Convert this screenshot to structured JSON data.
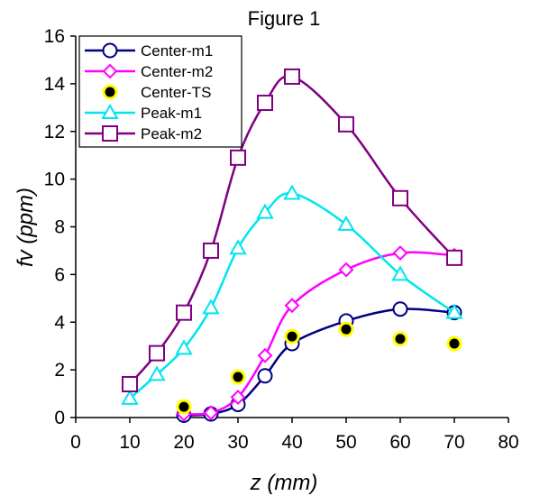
{
  "chart_data": {
    "type": "line",
    "title": "Figure 1",
    "xlabel": "z (mm)",
    "ylabel": "fv (ppm)",
    "xlim": [
      0,
      80
    ],
    "ylim": [
      0,
      16
    ],
    "x_ticks": [
      0,
      10,
      20,
      30,
      40,
      50,
      60,
      70,
      80
    ],
    "y_ticks": [
      0,
      2,
      4,
      6,
      8,
      10,
      12,
      14,
      16
    ],
    "grid": false,
    "legend_position": "top-left",
    "series": [
      {
        "name": "Center-m1",
        "color": "#000080",
        "marker": "circle",
        "line": true,
        "points": [
          [
            20,
            0.1
          ],
          [
            25,
            0.15
          ],
          [
            30,
            0.55
          ],
          [
            35,
            1.75
          ],
          [
            40,
            3.1
          ],
          [
            50,
            4.05
          ],
          [
            60,
            4.55
          ],
          [
            70,
            4.4
          ]
        ]
      },
      {
        "name": "Center-m2",
        "color": "#ff00ff",
        "marker": "diamond",
        "line": true,
        "points": [
          [
            20,
            0.15
          ],
          [
            25,
            0.2
          ],
          [
            30,
            0.85
          ],
          [
            35,
            2.6
          ],
          [
            40,
            4.7
          ],
          [
            50,
            6.2
          ],
          [
            60,
            6.9
          ],
          [
            70,
            6.8
          ]
        ]
      },
      {
        "name": "Center-TS",
        "color": "#000000",
        "fill": "#ffff00",
        "marker": "dot",
        "line": false,
        "points": [
          [
            20,
            0.45
          ],
          [
            30,
            1.7
          ],
          [
            40,
            3.4
          ],
          [
            50,
            3.7
          ],
          [
            60,
            3.3
          ],
          [
            70,
            3.1
          ]
        ]
      },
      {
        "name": "Peak-m1",
        "color": "#00e5ee",
        "marker": "triangle",
        "line": true,
        "points": [
          [
            10,
            0.8
          ],
          [
            15,
            1.8
          ],
          [
            20,
            2.9
          ],
          [
            25,
            4.6
          ],
          [
            30,
            7.1
          ],
          [
            35,
            8.6
          ],
          [
            40,
            9.4
          ],
          [
            50,
            8.1
          ],
          [
            60,
            6.0
          ],
          [
            70,
            4.4
          ]
        ]
      },
      {
        "name": "Peak-m2",
        "color": "#800080",
        "marker": "square",
        "line": true,
        "points": [
          [
            10,
            1.4
          ],
          [
            15,
            2.7
          ],
          [
            20,
            4.4
          ],
          [
            25,
            7.0
          ],
          [
            30,
            10.9
          ],
          [
            35,
            13.2
          ],
          [
            40,
            14.3
          ],
          [
            50,
            12.3
          ],
          [
            60,
            9.2
          ],
          [
            70,
            6.7
          ]
        ]
      }
    ]
  }
}
